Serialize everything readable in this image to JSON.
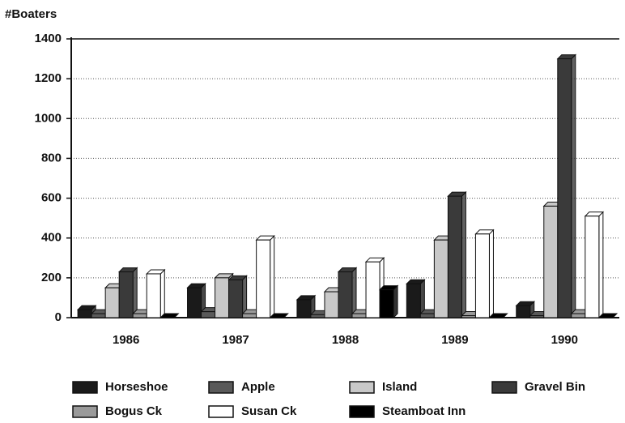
{
  "chart_data": {
    "type": "bar",
    "y_axis_label": "#Boaters",
    "categories": [
      "1986",
      "1987",
      "1988",
      "1989",
      "1990"
    ],
    "series": [
      {
        "name": "Horseshoe",
        "color": "#1a1a1a",
        "values": [
          40,
          150,
          90,
          170,
          60
        ]
      },
      {
        "name": "Apple",
        "color": "#5a5a5a",
        "values": [
          20,
          30,
          15,
          20,
          10
        ]
      },
      {
        "name": "Island",
        "color": "#c8c8c8",
        "values": [
          150,
          200,
          130,
          390,
          560
        ]
      },
      {
        "name": "Gravel Bin",
        "color": "#3a3a3a",
        "values": [
          230,
          190,
          230,
          610,
          1300
        ]
      },
      {
        "name": "Bogus Ck",
        "color": "#9a9a9a",
        "values": [
          20,
          20,
          20,
          10,
          20
        ]
      },
      {
        "name": "Susan Ck",
        "color": "#ffffff",
        "values": [
          220,
          390,
          280,
          420,
          510
        ]
      },
      {
        "name": "Steamboat Inn",
        "color": "#000000",
        "values": [
          0,
          0,
          140,
          0,
          0
        ]
      }
    ],
    "ylim": [
      0,
      1400
    ],
    "yticks": [
      0,
      200,
      400,
      600,
      800,
      1000,
      1200,
      1400
    ],
    "grid": true
  }
}
